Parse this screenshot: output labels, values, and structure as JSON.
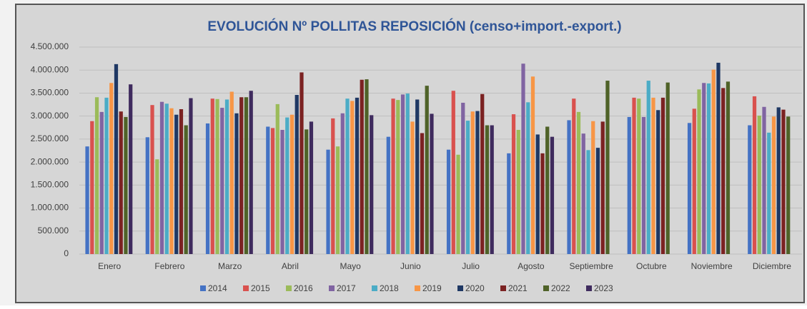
{
  "chart_data": {
    "type": "bar",
    "title": "EVOLUCIÓN Nº POLLITAS REPOSICIÓN (censo+import.-export.)",
    "categories": [
      "Enero",
      "Febrero",
      "Marzo",
      "Abril",
      "Mayo",
      "Junio",
      "Julio",
      "Agosto",
      "Septiembre",
      "Octubre",
      "Noviembre",
      "Diciembre"
    ],
    "series": [
      {
        "name": "2014",
        "color": "#4472c4",
        "values": [
          2340000,
          2540000,
          2840000,
          2770000,
          2270000,
          2550000,
          2270000,
          2190000,
          2910000,
          2980000,
          2850000,
          2800000
        ]
      },
      {
        "name": "2015",
        "color": "#d9514e",
        "values": [
          2890000,
          3240000,
          3380000,
          2740000,
          2950000,
          3380000,
          3550000,
          3040000,
          3380000,
          3400000,
          3160000,
          3430000
        ]
      },
      {
        "name": "2016",
        "color": "#9bbb59",
        "values": [
          3410000,
          2060000,
          3370000,
          3260000,
          2340000,
          3350000,
          2160000,
          2700000,
          3090000,
          3380000,
          3580000,
          3010000
        ]
      },
      {
        "name": "2017",
        "color": "#8064a2",
        "values": [
          3090000,
          3310000,
          3180000,
          2700000,
          3060000,
          3470000,
          3290000,
          4140000,
          2620000,
          2980000,
          3720000,
          3200000
        ]
      },
      {
        "name": "2018",
        "color": "#4bacc6",
        "values": [
          3400000,
          3270000,
          3360000,
          2970000,
          3380000,
          3490000,
          2900000,
          3300000,
          2260000,
          3770000,
          3710000,
          2640000
        ]
      },
      {
        "name": "2019",
        "color": "#f79646",
        "values": [
          3720000,
          3170000,
          3530000,
          3030000,
          3330000,
          2880000,
          3100000,
          3860000,
          2890000,
          3400000,
          4010000,
          2990000
        ]
      },
      {
        "name": "2020",
        "color": "#1f3864",
        "values": [
          4130000,
          3030000,
          3060000,
          3460000,
          3400000,
          3360000,
          3110000,
          2600000,
          2310000,
          3130000,
          4160000,
          3190000
        ]
      },
      {
        "name": "2021",
        "color": "#7b2222",
        "values": [
          3100000,
          3150000,
          3410000,
          3950000,
          3790000,
          2630000,
          3480000,
          2190000,
          2880000,
          3400000,
          3610000,
          3140000
        ]
      },
      {
        "name": "2022",
        "color": "#4f6228",
        "values": [
          2980000,
          2800000,
          3410000,
          2710000,
          3800000,
          3660000,
          2800000,
          2770000,
          3770000,
          3730000,
          3750000,
          2990000
        ]
      },
      {
        "name": "2023",
        "color": "#3f2b5e",
        "values": [
          3690000,
          3390000,
          3550000,
          2880000,
          3020000,
          3050000,
          2800000,
          2550000,
          null,
          null,
          null,
          null
        ]
      }
    ],
    "ylim": [
      0,
      4500000
    ],
    "yticks": [
      0,
      {
        "value": 500000,
        "label": "500.000"
      },
      {
        "value": 1000000,
        "label": "1.000.000"
      },
      {
        "value": 1500000,
        "label": "1.500.000"
      },
      {
        "value": 2000000,
        "label": "2.000.000"
      },
      {
        "value": 2500000,
        "label": "2.500.000"
      },
      {
        "value": 3000000,
        "label": "3.000.000"
      },
      {
        "value": 3500000,
        "label": "3.500.000"
      },
      {
        "value": 4000000,
        "label": "4.000.000"
      },
      {
        "value": 4500000,
        "label": "4.500.000"
      }
    ],
    "grid": true,
    "legend": "bottom"
  }
}
